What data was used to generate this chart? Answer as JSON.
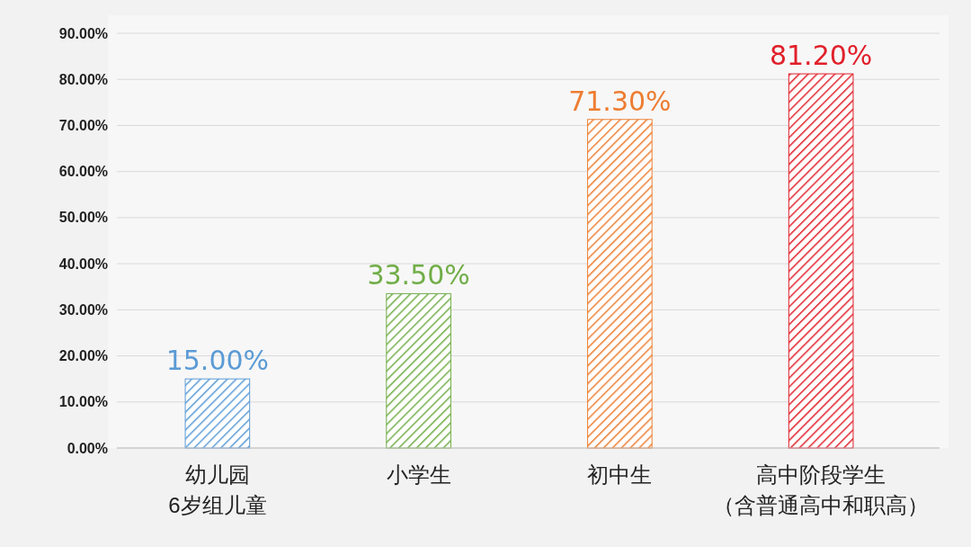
{
  "chart_data": {
    "type": "bar",
    "categories": [
      "幼儿园6岁组儿童",
      "小学生",
      "初中生",
      "高中阶段学生（含普通高中和职高）"
    ],
    "values": [
      15,
      33.5,
      71.3,
      81.2
    ],
    "colors": [
      "#5b9bd5",
      "#70ad47",
      "#ed7d31",
      "#e0202a"
    ],
    "value_labels": [
      "15.00%",
      "33.50%",
      "71.30%",
      "81.20%"
    ],
    "ylim": [
      0,
      90
    ],
    "yticks": [
      {
        "value": 0,
        "label": "0.00%"
      },
      {
        "value": 10,
        "label": "10.00%"
      },
      {
        "value": 20,
        "label": "20.00%"
      },
      {
        "value": 30,
        "label": "30.00%"
      },
      {
        "value": 40,
        "label": "40.00%"
      },
      {
        "value": 50,
        "label": "50.00%"
      },
      {
        "value": 60,
        "label": "60.00%"
      },
      {
        "value": 70,
        "label": "70.00%"
      },
      {
        "value": 80,
        "label": "80.00%"
      },
      {
        "value": 90,
        "label": "90.00%"
      }
    ],
    "grid": "y"
  }
}
